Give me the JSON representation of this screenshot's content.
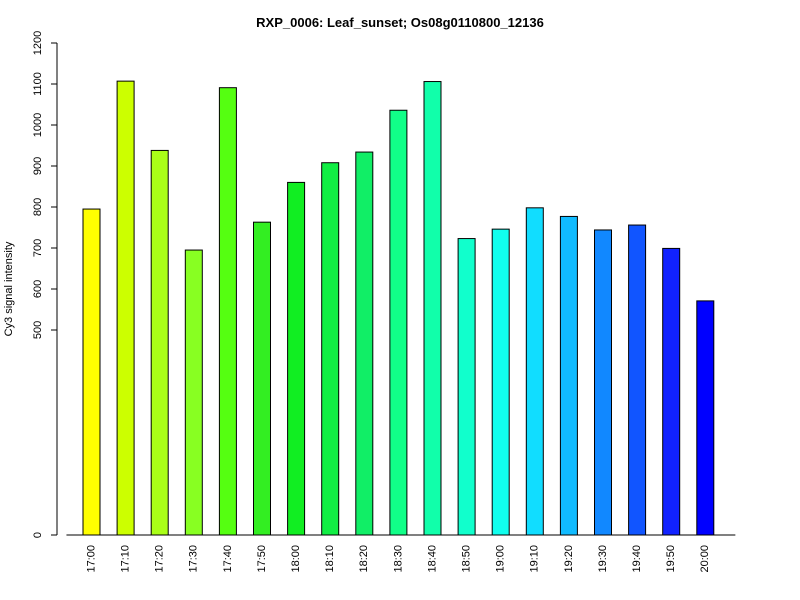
{
  "chart_data": {
    "type": "bar",
    "title": "RXP_0006: Leaf_sunset; Os08g0110800_12136",
    "xlabel": "",
    "ylabel": "Cy3 signal intensity",
    "ylim": [
      0,
      1200
    ],
    "y_ticks": [
      {
        "value": 0,
        "label": "0"
      },
      {
        "value": 500,
        "label": "500"
      },
      {
        "value": 600,
        "label": "600"
      },
      {
        "value": 700,
        "label": "700"
      },
      {
        "value": 800,
        "label": "800"
      },
      {
        "value": 900,
        "label": "900"
      },
      {
        "value": 1000,
        "label": "1000"
      },
      {
        "value": 1100,
        "label": "1100"
      },
      {
        "value": 1200,
        "label": "1200"
      }
    ],
    "categories": [
      "17:00",
      "17:10",
      "17:20",
      "17:30",
      "17:40",
      "17:50",
      "18:00",
      "18:10",
      "18:20",
      "18:30",
      "18:40",
      "18:50",
      "19:00",
      "19:10",
      "19:20",
      "19:30",
      "19:40",
      "19:50",
      "20:00"
    ],
    "values": [
      795,
      1107,
      938,
      695,
      1091,
      763,
      860,
      908,
      934,
      1036,
      1106,
      723,
      746,
      798,
      777,
      744,
      756,
      699,
      571
    ],
    "colors": [
      "#FFFF00",
      "#CCFF00",
      "#AAFF18",
      "#88FF22",
      "#55FF11",
      "#33EE22",
      "#11EE22",
      "#11EE44",
      "#11EE66",
      "#11FF88",
      "#11FFAA",
      "#11FFCC",
      "#11FFEE",
      "#11DDFF",
      "#11BBFF",
      "#1188FF",
      "#1155FF",
      "#1122FF",
      "#0000FF"
    ],
    "grid": false,
    "legend": "none"
  }
}
